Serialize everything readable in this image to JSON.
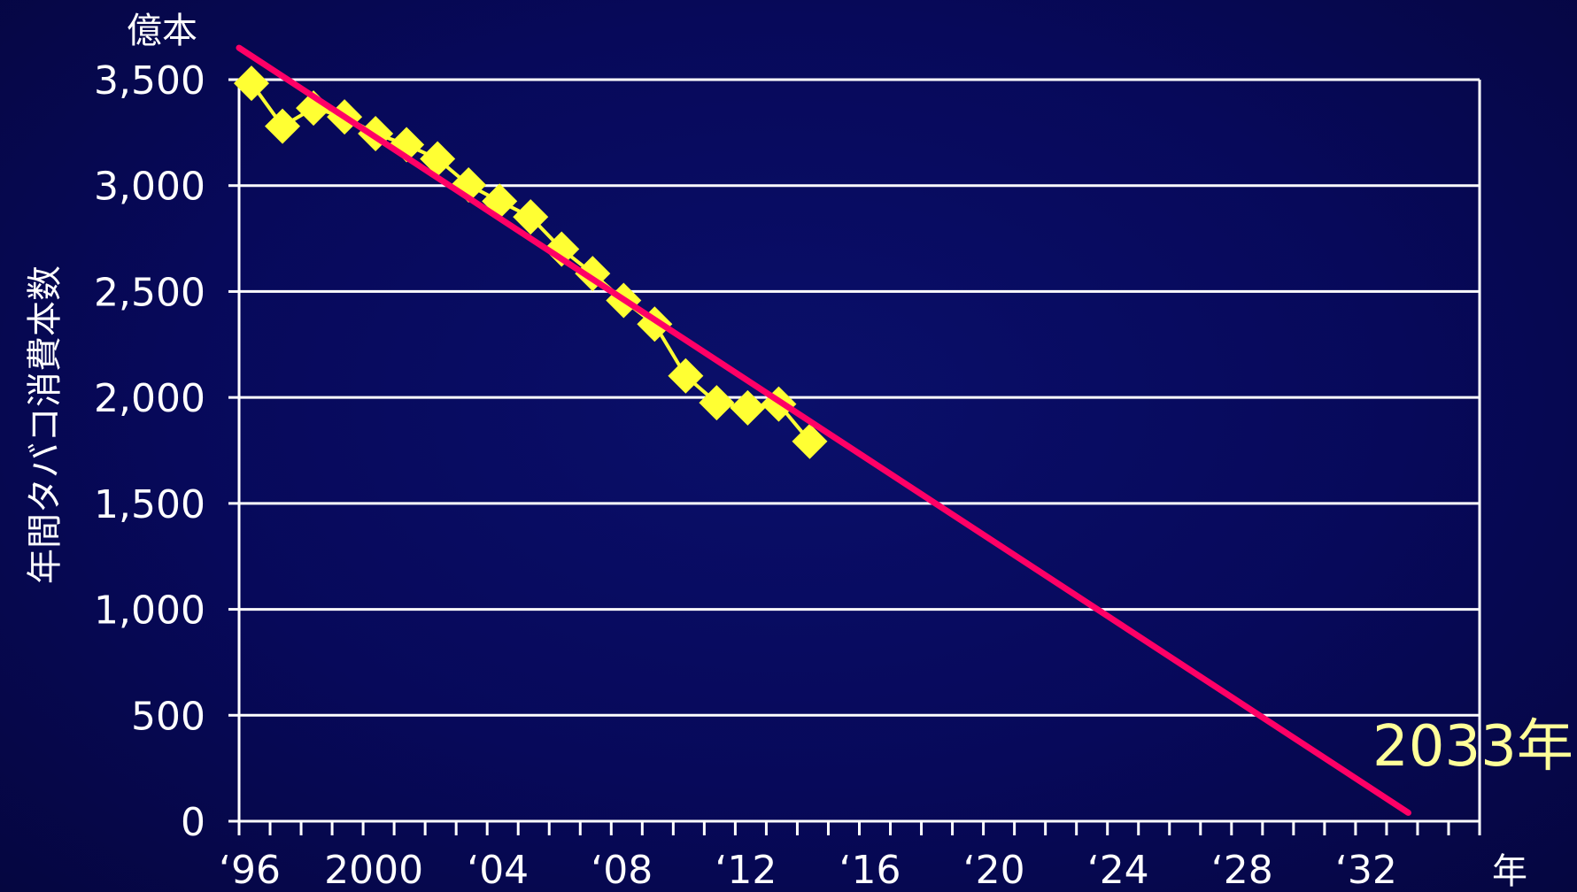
{
  "chart_data": {
    "type": "line",
    "title": "",
    "ylabel": "年間タバコ消費本数",
    "yunit": "億本",
    "xunit": "年",
    "ylim": [
      0,
      3500
    ],
    "xlim": [
      1996,
      2036
    ],
    "yticks": [
      {
        "value": 0,
        "label": "0"
      },
      {
        "value": 500,
        "label": "500"
      },
      {
        "value": 1000,
        "label": "1,000"
      },
      {
        "value": 1500,
        "label": "1,500"
      },
      {
        "value": 2000,
        "label": "2,000"
      },
      {
        "value": 2500,
        "label": "2,500"
      },
      {
        "value": 3000,
        "label": "3,000"
      },
      {
        "value": 3500,
        "label": "3,500"
      }
    ],
    "xticks": [
      {
        "value": 1996,
        "label": "‘96"
      },
      {
        "value": 2000,
        "label": "2000"
      },
      {
        "value": 2004,
        "label": "‘04"
      },
      {
        "value": 2008,
        "label": "‘08"
      },
      {
        "value": 2012,
        "label": "‘12"
      },
      {
        "value": 2016,
        "label": "‘16"
      },
      {
        "value": 2020,
        "label": "‘20"
      },
      {
        "value": 2024,
        "label": "‘24"
      },
      {
        "value": 2028,
        "label": "‘28"
      },
      {
        "value": 2032,
        "label": "‘32"
      }
    ],
    "grid": true,
    "series": [
      {
        "color": "#ffff33",
        "marker": "diamond",
        "x": [
          1996.4,
          1997.4,
          1998.4,
          1999.4,
          2000.4,
          2001.4,
          2002.4,
          2003.4,
          2004.4,
          2005.4,
          2006.4,
          2007.4,
          2008.4,
          2009.4,
          2010.4,
          2011.4,
          2012.4,
          2013.4,
          2014.4
        ],
        "y": [
          3483,
          3280,
          3366,
          3324,
          3245,
          3193,
          3126,
          3003,
          2926,
          2852,
          2700,
          2585,
          2458,
          2346,
          2102,
          1975,
          1951,
          1969,
          1793
        ]
      }
    ],
    "trendline": {
      "color": "#ff0066",
      "x": [
        1996,
        2033.7
      ],
      "y": [
        3650,
        40
      ]
    },
    "annotation": {
      "text": "2033年"
    }
  }
}
